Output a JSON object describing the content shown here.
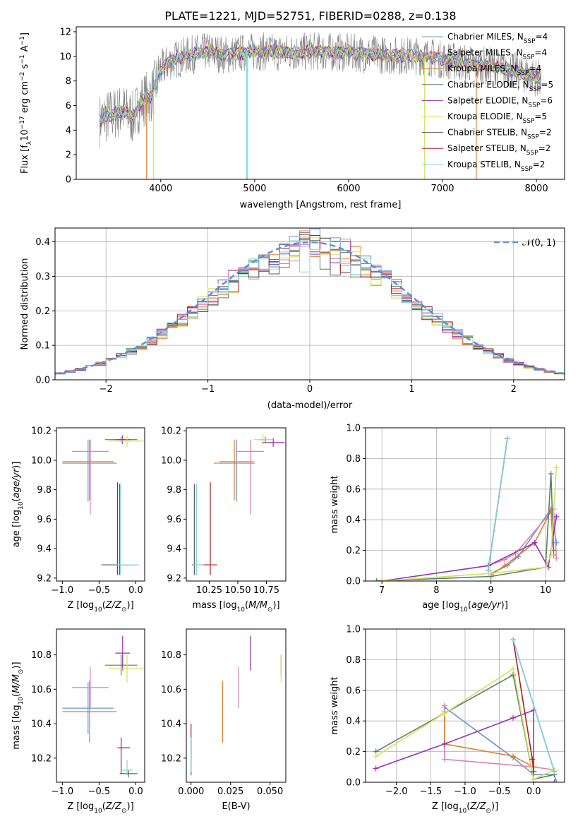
{
  "title": "PLATE=1221, MJD=52751, FIBERID=0288, z=0.138",
  "colors": [
    "#6c93d6",
    "#e27fb6",
    "#e87b2a",
    "#5f7f6a",
    "#9630b4",
    "#cde55a",
    "#5a5a5a",
    "#b01e2a",
    "#7fd6da"
  ],
  "legend": [
    "Chabrier MILES, N_SSP=4",
    "Salpeter MILES, N_SSP=4",
    "Kroupa MILES, N_SSP=4",
    "Chabrier ELODIE, N_SSP=5",
    "Salpeter ELODIE, N_SSP=6",
    "Kroupa ELODIE, N_SSP=5",
    "Chabrier STELIB, N_SSP=2",
    "Salpeter STELIB, N_SSP=2",
    "Kroupa STELIB, N_SSP=2"
  ],
  "chart_data": [
    {
      "id": "spectrum",
      "type": "line",
      "xlabel": "wavelength [Angstrom, rest frame]",
      "ylabel": "Flux [f_λ 10^-17 erg cm^-2 s^-1 A^-1]",
      "xlim": [
        3100,
        8300
      ],
      "ylim": [
        0,
        12.4
      ],
      "xticks": [
        4000,
        5000,
        6000,
        7000,
        8000
      ],
      "yticks": [
        0,
        2,
        4,
        6,
        8,
        10,
        12
      ],
      "grid": false,
      "legend_position": "top-right",
      "continuum": {
        "x": [
          3350,
          3450,
          3600,
          3700,
          3800,
          3900,
          3950,
          4000,
          4100,
          4300,
          4500,
          4700,
          5000,
          5300,
          5600,
          6000,
          6400,
          6800,
          7200,
          7600,
          8050
        ],
        "y": [
          4.8,
          5.2,
          5.6,
          5.0,
          6.4,
          6.8,
          7.8,
          8.9,
          9.6,
          10.1,
          10.4,
          10.1,
          10.4,
          10.3,
          10.4,
          10.3,
          10.1,
          10.0,
          9.5,
          9.1,
          8.2
        ]
      }
    },
    {
      "id": "residuals",
      "type": "histogram",
      "xlabel": "(data-model)/error",
      "ylabel": "Normed distribution",
      "xlim": [
        -2.5,
        2.5
      ],
      "ylim": [
        0,
        0.44
      ],
      "xticks": [
        -2,
        -1,
        0,
        1,
        2
      ],
      "yticks": [
        0.0,
        0.1,
        0.2,
        0.3,
        0.4
      ],
      "grid": true,
      "reference_curve": "N(0,1)",
      "legend_position": "top-right"
    },
    {
      "id": "age_vs_Z",
      "type": "errorbar",
      "xlabel": "Z [log10(Z/Z_sun)]",
      "ylabel": "age  [log10(age/yr)]",
      "xlim": [
        -1.08,
        0.12
      ],
      "ylim": [
        9.18,
        10.22
      ],
      "xticks": [
        -1.0,
        -0.5,
        0.0
      ],
      "yticks": [
        9.2,
        9.4,
        9.6,
        9.8,
        10.0,
        10.2
      ],
      "points": [
        {
          "x": -0.65,
          "y": 9.99,
          "xerr": [
            0.35,
            0.35
          ],
          "yerr": [
            0.27,
            0.15
          ]
        },
        {
          "x": -0.62,
          "y": 10.06,
          "xerr": [
            0.25,
            0.25
          ],
          "yerr": [
            0.43,
            0.08
          ]
        },
        {
          "x": -0.63,
          "y": 9.98,
          "xerr": [
            0.37,
            0.37
          ],
          "yerr": [
            0.25,
            0.16
          ]
        },
        {
          "x": -0.2,
          "y": 10.14,
          "xerr": [
            0.22,
            0.22
          ],
          "yerr": [
            0.02,
            0.02
          ]
        },
        {
          "x": -0.18,
          "y": 10.14,
          "xerr": [
            0.1,
            0.1
          ],
          "yerr": [
            0.03,
            0.03
          ]
        },
        {
          "x": -0.12,
          "y": 10.13,
          "xerr": [
            0.25,
            0.25
          ],
          "yerr": [
            0.04,
            0.04
          ]
        },
        {
          "x": -0.22,
          "y": 9.29,
          "xerr": [
            0.25,
            0.25
          ],
          "yerr": [
            0.07,
            0.55
          ]
        },
        {
          "x": -0.25,
          "y": 9.29,
          "xerr": [
            0.02,
            0.22
          ],
          "yerr": [
            0.07,
            0.56
          ]
        },
        {
          "x": -0.21,
          "y": 9.29,
          "xerr": [
            0.05,
            0.25
          ],
          "yerr": [
            0.07,
            0.55
          ]
        }
      ]
    },
    {
      "id": "age_vs_mass",
      "type": "errorbar",
      "xlabel": "mass [log10(M/M_sun)]",
      "ylabel": "",
      "xlim": [
        10.05,
        10.92
      ],
      "ylim": [
        9.18,
        10.22
      ],
      "xticks": [
        10.25,
        10.5,
        10.75
      ],
      "yticks": [
        9.2,
        9.4,
        9.6,
        9.8,
        10.0,
        10.2
      ],
      "points": [
        {
          "x": 10.49,
          "y": 9.99,
          "xerr": [
            0.15,
            0.15
          ],
          "yerr": [
            0.27,
            0.15
          ]
        },
        {
          "x": 10.61,
          "y": 10.06,
          "xerr": [
            0.12,
            0.12
          ],
          "yerr": [
            0.43,
            0.08
          ]
        },
        {
          "x": 10.47,
          "y": 9.98,
          "xerr": [
            0.18,
            0.18
          ],
          "yerr": [
            0.25,
            0.16
          ]
        },
        {
          "x": 10.74,
          "y": 10.14,
          "xerr": [
            0.06,
            0.06
          ],
          "yerr": [
            0.02,
            0.02
          ]
        },
        {
          "x": 10.81,
          "y": 10.12,
          "xerr": [
            0.1,
            0.1
          ],
          "yerr": [
            0.03,
            0.03
          ]
        },
        {
          "x": 10.72,
          "y": 10.14,
          "xerr": [
            0.08,
            0.08
          ],
          "yerr": [
            0.04,
            0.04
          ]
        },
        {
          "x": 10.12,
          "y": 9.29,
          "xerr": [
            0.02,
            0.02
          ],
          "yerr": [
            0.07,
            0.55
          ]
        },
        {
          "x": 10.26,
          "y": 9.29,
          "xerr": [
            0.15,
            0.06
          ],
          "yerr": [
            0.07,
            0.56
          ]
        },
        {
          "x": 10.14,
          "y": 9.29,
          "xerr": [
            0.03,
            0.06
          ],
          "yerr": [
            0.07,
            0.55
          ]
        }
      ]
    },
    {
      "id": "weight_vs_age",
      "type": "line",
      "xlabel": "age  [log10(age/yr)]",
      "ylabel": "mass weight",
      "xlim": [
        6.7,
        10.35
      ],
      "ylim": [
        0,
        1.0
      ],
      "xticks": [
        7,
        8,
        9,
        10
      ],
      "yticks": [
        0.0,
        0.2,
        0.4,
        0.6,
        0.8,
        1.0
      ],
      "grid": true,
      "series": [
        {
          "x": [
            9.0,
            9.3,
            9.5,
            10.1,
            10.2
          ],
          "y": [
            0.05,
            0.1,
            0.16,
            0.47,
            0.25
          ]
        },
        {
          "x": [
            8.95,
            9.25,
            9.45,
            10.15,
            10.2
          ],
          "y": [
            0.1,
            0.14,
            0.18,
            0.47,
            0.15
          ]
        },
        {
          "x": [
            9.0,
            9.25,
            9.8,
            10.1,
            10.15
          ],
          "y": [
            0.04,
            0.1,
            0.25,
            0.46,
            0.17
          ]
        },
        {
          "x": [
            6.9,
            9.0,
            10.0,
            10.1,
            10.15
          ],
          "y": [
            0.0,
            0.03,
            0.09,
            0.7,
            0.2
          ]
        },
        {
          "x": [
            7.0,
            8.95,
            9.8,
            10.05,
            10.2
          ],
          "y": [
            0.0,
            0.1,
            0.25,
            0.09,
            0.42
          ]
        },
        {
          "x": [
            7.0,
            9.0,
            10.0,
            10.1,
            10.2
          ],
          "y": [
            0.0,
            0.05,
            0.09,
            0.17,
            0.74
          ]
        },
        {
          "x": [
            8.95,
            9.3
          ],
          "y": [
            0.07,
            0.93
          ]
        },
        {
          "x": [
            8.95,
            9.3
          ],
          "y": [
            0.07,
            0.93
          ]
        },
        {
          "x": [
            8.95,
            9.3
          ],
          "y": [
            0.07,
            0.93
          ]
        }
      ]
    },
    {
      "id": "mass_vs_Z",
      "type": "errorbar",
      "xlabel": "Z [log10(Z/Z_sun)]",
      "ylabel": "mass [log10(M/M_sun)]",
      "xlim": [
        -1.08,
        0.12
      ],
      "ylim": [
        10.06,
        10.95
      ],
      "xticks": [
        -1.0,
        -0.5,
        0.0
      ],
      "yticks": [
        10.2,
        10.4,
        10.6,
        10.8
      ],
      "points": [
        {
          "x": -0.65,
          "y": 10.49,
          "xerr": [
            0.35,
            0.35
          ],
          "yerr": [
            0.15,
            0.15
          ]
        },
        {
          "x": -0.62,
          "y": 10.61,
          "xerr": [
            0.25,
            0.25
          ],
          "yerr": [
            0.12,
            0.12
          ]
        },
        {
          "x": -0.63,
          "y": 10.47,
          "xerr": [
            0.37,
            0.37
          ],
          "yerr": [
            0.18,
            0.18
          ]
        },
        {
          "x": -0.2,
          "y": 10.74,
          "xerr": [
            0.22,
            0.22
          ],
          "yerr": [
            0.06,
            0.06
          ]
        },
        {
          "x": -0.18,
          "y": 10.81,
          "xerr": [
            0.1,
            0.1
          ],
          "yerr": [
            0.1,
            0.1
          ]
        },
        {
          "x": -0.12,
          "y": 10.72,
          "xerr": [
            0.25,
            0.25
          ],
          "yerr": [
            0.08,
            0.08
          ]
        },
        {
          "x": -0.1,
          "y": 10.11,
          "xerr": [
            0.12,
            0.12
          ],
          "yerr": [
            0.02,
            0.02
          ]
        },
        {
          "x": -0.2,
          "y": 10.26,
          "xerr": [
            0.05,
            0.12
          ],
          "yerr": [
            0.15,
            0.06
          ]
        },
        {
          "x": -0.12,
          "y": 10.13,
          "xerr": [
            0.08,
            0.08
          ],
          "yerr": [
            0.03,
            0.06
          ]
        }
      ]
    },
    {
      "id": "mass_vs_ebv",
      "type": "errorbar",
      "xlabel": "E(B-V)",
      "ylabel": "",
      "xlim": [
        -0.003,
        0.06
      ],
      "ylim": [
        10.06,
        10.95
      ],
      "xticks": [
        0.0,
        0.025,
        0.05
      ],
      "xticklabels": [
        "0.000",
        "0.025",
        "0.050"
      ],
      "yticks": [
        10.2,
        10.4,
        10.6,
        10.8
      ],
      "points": [
        {
          "x": 0.02,
          "y": 10.49,
          "yerr": [
            0.15,
            0.15
          ]
        },
        {
          "x": 0.03,
          "y": 10.61,
          "yerr": [
            0.12,
            0.12
          ]
        },
        {
          "x": 0.02,
          "y": 10.47,
          "yerr": [
            0.18,
            0.18
          ]
        },
        {
          "x": 0.057,
          "y": 10.74,
          "yerr": [
            0.06,
            0.06
          ]
        },
        {
          "x": 0.0375,
          "y": 10.81,
          "yerr": [
            0.1,
            0.1
          ]
        },
        {
          "x": 0.057,
          "y": 10.72,
          "yerr": [
            0.08,
            0.08
          ]
        },
        {
          "x": 0.0,
          "y": 10.2,
          "yerr": [
            0.1,
            0.1
          ]
        },
        {
          "x": 0.0,
          "y": 10.3,
          "yerr": [
            0.1,
            0.1
          ]
        },
        {
          "x": 0.0,
          "y": 10.22,
          "yerr": [
            0.1,
            0.1
          ]
        }
      ]
    },
    {
      "id": "weight_vs_Z",
      "type": "line",
      "xlabel": "Z [log10(Z/Z_sun)]",
      "ylabel": "mass weight",
      "xlim": [
        -2.45,
        0.45
      ],
      "ylim": [
        0,
        1.0
      ],
      "xticks": [
        -2.0,
        -1.5,
        -1.0,
        -0.5,
        0.0
      ],
      "yticks": [
        0.0,
        0.2,
        0.4,
        0.6,
        0.8,
        1.0
      ],
      "grid": true,
      "series": [
        {
          "x": [
            -1.3,
            -0.3,
            0.0,
            0.3,
            0.33
          ],
          "y": [
            0.49,
            0.16,
            0.05,
            0.05,
            0.0
          ]
        },
        {
          "x": [
            -1.3,
            -1.3,
            0.0,
            0.3
          ],
          "y": [
            0.5,
            0.15,
            0.1,
            0.08
          ]
        },
        {
          "x": [
            -1.3,
            -1.3,
            -0.3,
            0.0
          ],
          "y": [
            0.46,
            0.25,
            0.17,
            0.1
          ]
        },
        {
          "x": [
            -2.3,
            -0.3,
            -0.3,
            0.0,
            0.3
          ],
          "y": [
            0.2,
            0.7,
            0.7,
            0.02,
            0.05
          ]
        },
        {
          "x": [
            -2.3,
            -1.3,
            -0.3,
            0.0,
            0.0,
            0.3
          ],
          "y": [
            0.09,
            0.25,
            0.42,
            0.47,
            0.0,
            0.0
          ]
        },
        {
          "x": [
            -2.3,
            -1.3,
            -0.3,
            0.0,
            0.3
          ],
          "y": [
            0.17,
            0.45,
            0.74,
            0.02,
            0.08
          ]
        },
        {
          "x": [
            -0.3,
            0.3
          ],
          "y": [
            0.93,
            0.07
          ]
        },
        {
          "x": [
            -0.3,
            -0.02,
            0.0
          ],
          "y": [
            0.93,
            0.15,
            0.07
          ]
        },
        {
          "x": [
            -0.3,
            0.3
          ],
          "y": [
            0.93,
            0.07
          ]
        }
      ]
    }
  ]
}
